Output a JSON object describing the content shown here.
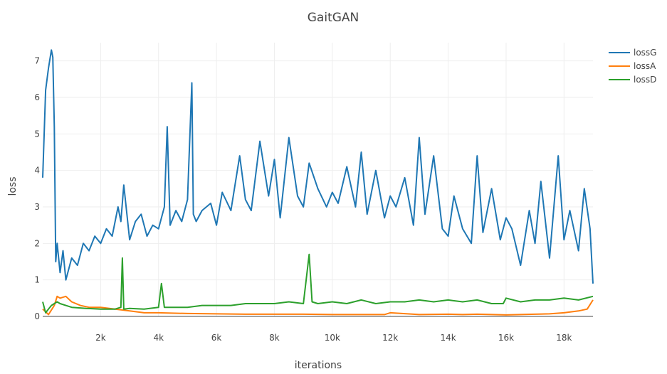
{
  "chart_data": {
    "type": "line",
    "title": "GaitGAN",
    "xlabel": "iterations",
    "ylabel": "loss",
    "xlim": [
      0,
      19000
    ],
    "ylim": [
      0,
      7.5
    ],
    "x_ticks": [
      2000,
      4000,
      6000,
      8000,
      10000,
      12000,
      14000,
      16000,
      18000
    ],
    "x_tick_labels": [
      "2k",
      "4k",
      "6k",
      "8k",
      "10k",
      "12k",
      "14k",
      "16k",
      "18k"
    ],
    "y_ticks": [
      0,
      1,
      2,
      3,
      4,
      5,
      6,
      7
    ],
    "y_tick_labels": [
      "0",
      "1",
      "2",
      "3",
      "4",
      "5",
      "6",
      "7"
    ],
    "grid": true,
    "legend_position": "top-right",
    "series": [
      {
        "name": "lossG",
        "color": "#1f77b4",
        "x": [
          0,
          100,
          200,
          300,
          350,
          400,
          450,
          500,
          600,
          700,
          800,
          1000,
          1200,
          1400,
          1600,
          1800,
          2000,
          2200,
          2400,
          2600,
          2700,
          2800,
          3000,
          3200,
          3400,
          3600,
          3800,
          4000,
          4200,
          4300,
          4400,
          4600,
          4800,
          5000,
          5150,
          5200,
          5300,
          5500,
          5800,
          6000,
          6200,
          6500,
          6800,
          7000,
          7200,
          7500,
          7800,
          8000,
          8200,
          8500,
          8800,
          9000,
          9200,
          9500,
          9800,
          10000,
          10200,
          10500,
          10800,
          11000,
          11200,
          11500,
          11800,
          12000,
          12200,
          12500,
          12800,
          13000,
          13200,
          13500,
          13800,
          14000,
          14200,
          14500,
          14800,
          15000,
          15200,
          15500,
          15800,
          16000,
          16200,
          16500,
          16800,
          17000,
          17200,
          17500,
          17800,
          18000,
          18200,
          18500,
          18700,
          18900,
          19000
        ],
        "values": [
          3.8,
          6.2,
          6.8,
          7.3,
          7.1,
          5.2,
          1.5,
          2.0,
          1.2,
          1.8,
          1.0,
          1.6,
          1.4,
          2.0,
          1.8,
          2.2,
          2.0,
          2.4,
          2.2,
          3.0,
          2.6,
          3.6,
          2.1,
          2.6,
          2.8,
          2.2,
          2.5,
          2.4,
          3.0,
          5.2,
          2.5,
          2.9,
          2.6,
          3.2,
          6.4,
          2.8,
          2.6,
          2.9,
          3.1,
          2.5,
          3.4,
          2.9,
          4.4,
          3.2,
          2.9,
          4.8,
          3.3,
          4.3,
          2.7,
          4.9,
          3.3,
          3.0,
          4.2,
          3.5,
          3.0,
          3.4,
          3.1,
          4.1,
          3.0,
          4.5,
          2.8,
          4.0,
          2.7,
          3.3,
          3.0,
          3.8,
          2.5,
          4.9,
          2.8,
          4.4,
          2.4,
          2.2,
          3.3,
          2.4,
          2.0,
          4.4,
          2.3,
          3.5,
          2.1,
          2.7,
          2.4,
          1.4,
          2.9,
          2.0,
          3.7,
          1.6,
          4.4,
          2.1,
          2.9,
          1.8,
          3.5,
          2.4,
          0.9
        ]
      },
      {
        "name": "lossA",
        "color": "#ff7f0e",
        "x": [
          0,
          200,
          400,
          500,
          600,
          800,
          1000,
          1300,
          1600,
          2000,
          2500,
          3000,
          3500,
          4000,
          5000,
          6000,
          7000,
          8000,
          9000,
          10000,
          11000,
          11800,
          12000,
          13000,
          14000,
          14500,
          15000,
          15500,
          16000,
          16500,
          17000,
          17500,
          18000,
          18500,
          18800,
          19000
        ],
        "values": [
          0.2,
          0.05,
          0.3,
          0.55,
          0.5,
          0.55,
          0.4,
          0.3,
          0.25,
          0.25,
          0.2,
          0.15,
          0.1,
          0.1,
          0.08,
          0.07,
          0.06,
          0.06,
          0.06,
          0.05,
          0.05,
          0.05,
          0.1,
          0.05,
          0.06,
          0.05,
          0.06,
          0.05,
          0.04,
          0.05,
          0.06,
          0.07,
          0.1,
          0.15,
          0.2,
          0.45
        ]
      },
      {
        "name": "lossD",
        "color": "#2ca02c",
        "x": [
          0,
          100,
          200,
          300,
          400,
          500,
          600,
          800,
          1000,
          1500,
          2000,
          2500,
          2700,
          2750,
          2800,
          3000,
          3500,
          4000,
          4100,
          4200,
          4500,
          5000,
          5500,
          6000,
          6500,
          7000,
          7500,
          8000,
          8500,
          9000,
          9200,
          9300,
          9500,
          10000,
          10500,
          11000,
          11500,
          12000,
          12500,
          13000,
          13500,
          14000,
          14500,
          15000,
          15500,
          15900,
          16000,
          16500,
          17000,
          17500,
          18000,
          18500,
          19000
        ],
        "values": [
          0.4,
          0.1,
          0.2,
          0.3,
          0.35,
          0.4,
          0.35,
          0.3,
          0.25,
          0.22,
          0.2,
          0.2,
          0.25,
          1.6,
          0.2,
          0.22,
          0.2,
          0.25,
          0.9,
          0.25,
          0.25,
          0.25,
          0.3,
          0.3,
          0.3,
          0.35,
          0.35,
          0.35,
          0.4,
          0.35,
          1.7,
          0.4,
          0.35,
          0.4,
          0.35,
          0.45,
          0.35,
          0.4,
          0.4,
          0.45,
          0.4,
          0.45,
          0.4,
          0.45,
          0.35,
          0.35,
          0.5,
          0.4,
          0.45,
          0.45,
          0.5,
          0.45,
          0.55
        ]
      }
    ]
  }
}
